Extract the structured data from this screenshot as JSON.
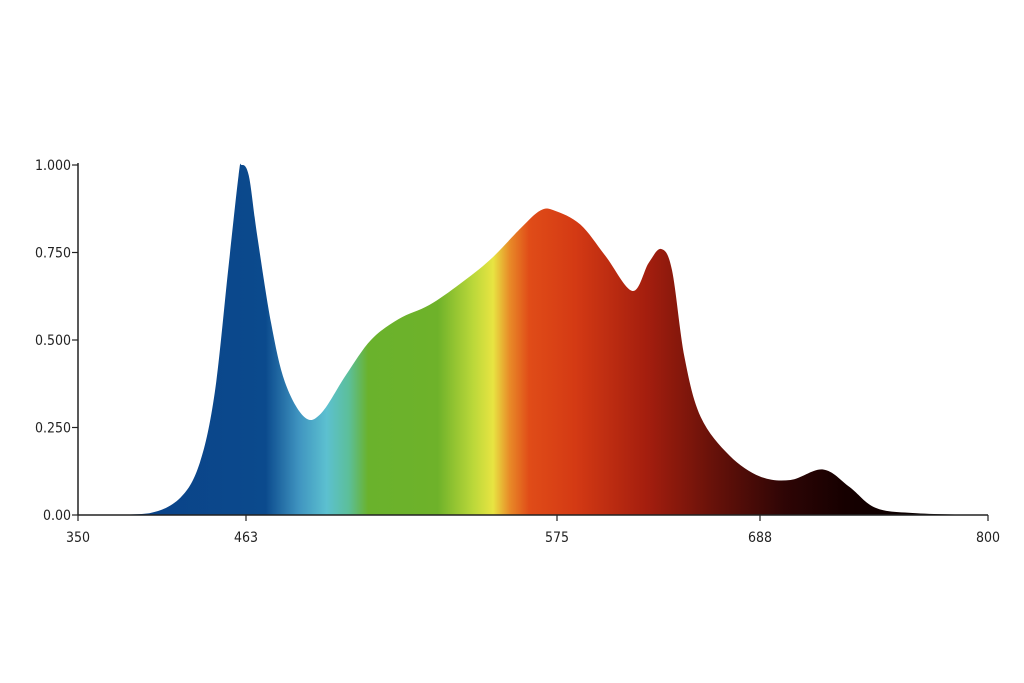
{
  "chart_data": {
    "type": "area",
    "title": "",
    "xlabel": "",
    "ylabel": "",
    "xlim": [
      350,
      800
    ],
    "ylim": [
      0,
      1
    ],
    "grid": false,
    "x_ticks": [
      350,
      463,
      575,
      688,
      800
    ],
    "x_tick_labels": [
      "350",
      "463",
      "575",
      "688",
      "800"
    ],
    "y_ticks": [
      0,
      0.25,
      0.5,
      0.75,
      1.0
    ],
    "y_tick_labels": [
      "0.00",
      "0.250",
      "0.500",
      "0.750",
      "1.000"
    ],
    "fill": "spectral gradient",
    "gradient": [
      {
        "nm": 350,
        "color": "#0a3f86"
      },
      {
        "nm": 470,
        "color": "#0b4a8d"
      },
      {
        "nm": 482,
        "color": "#3f94c0"
      },
      {
        "nm": 492,
        "color": "#5cc0d0"
      },
      {
        "nm": 500,
        "color": "#5cbf9a"
      },
      {
        "nm": 507,
        "color": "#6ab22c"
      },
      {
        "nm": 532,
        "color": "#6eb22a"
      },
      {
        "nm": 545,
        "color": "#bcd83a"
      },
      {
        "nm": 552,
        "color": "#e8e442"
      },
      {
        "nm": 558,
        "color": "#e88a28"
      },
      {
        "nm": 565,
        "color": "#e04c18"
      },
      {
        "nm": 585,
        "color": "#d43a14"
      },
      {
        "nm": 625,
        "color": "#a41e0e"
      },
      {
        "nm": 660,
        "color": "#6a120a"
      },
      {
        "nm": 700,
        "color": "#2e0505"
      },
      {
        "nm": 730,
        "color": "#160000"
      },
      {
        "nm": 800,
        "color": "#000000"
      }
    ],
    "series": [
      {
        "x": [
          350,
          365,
          398,
          419,
          432,
          442,
          451,
          458,
          460,
          464,
          467,
          472,
          477,
          484,
          490,
          499,
          508,
          518,
          529,
          540,
          551,
          562,
          569,
          574,
          588,
          602,
          617,
          626,
          633,
          639,
          646,
          655,
          671,
          688,
          703,
          719,
          732,
          745,
          765,
          800
        ],
        "y": [
          0,
          0,
          0.005,
          0.05,
          0.15,
          0.35,
          0.7,
          0.97,
          1.0,
          0.97,
          0.8,
          0.55,
          0.38,
          0.28,
          0.29,
          0.4,
          0.5,
          0.56,
          0.6,
          0.66,
          0.73,
          0.82,
          0.87,
          0.87,
          0.83,
          0.74,
          0.64,
          0.72,
          0.76,
          0.7,
          0.45,
          0.28,
          0.17,
          0.11,
          0.1,
          0.13,
          0.08,
          0.02,
          0.005,
          0
        ]
      }
    ]
  }
}
